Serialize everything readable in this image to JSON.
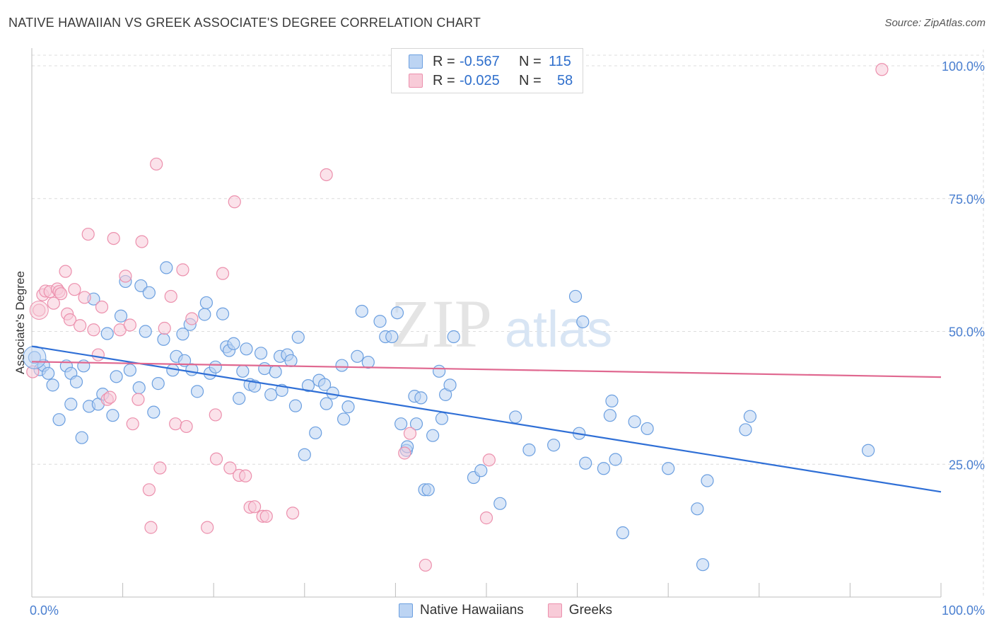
{
  "header": {
    "title": "NATIVE HAWAIIAN VS GREEK ASSOCIATE'S DEGREE CORRELATION CHART",
    "source": "Source: ZipAtlas.com"
  },
  "watermark": {
    "zip": "ZIP",
    "atlas": "atlas"
  },
  "legend": {
    "rows": [
      {
        "r_label": "R =",
        "r_value": "-0.567",
        "n_label": "N =",
        "n_value": "115",
        "color": "#a8c8f0"
      },
      {
        "r_label": "R =",
        "r_value": "-0.025",
        "n_label": "N =",
        "n_value": "58",
        "color": "#f5b8cb"
      }
    ]
  },
  "bottom_legend": {
    "series0": "Native Hawaiians",
    "series1": "Greeks"
  },
  "chart_data": {
    "type": "scatter",
    "title": "NATIVE HAWAIIAN VS GREEK ASSOCIATE'S DEGREE CORRELATION CHART",
    "xlabel": "",
    "ylabel": "Associate's Degree",
    "xlim": [
      0,
      100
    ],
    "ylim": [
      0,
      102
    ],
    "x_tick_labels": [
      "0.0%",
      "100.0%"
    ],
    "y_ticks": [
      25,
      50,
      75,
      100
    ],
    "y_tick_labels": [
      "25.0%",
      "50.0%",
      "75.0%",
      "100.0%"
    ],
    "grid": true,
    "legend_position": "top-center",
    "series": [
      {
        "name": "Native Hawaiians",
        "color": "#6b9fe0",
        "fill": "#bcd4f3",
        "line_color": "#2f6fd6",
        "trend": {
          "x": [
            0,
            100
          ],
          "y": [
            47.2,
            19.8
          ]
        },
        "points": [
          [
            0.3,
            45.1
          ],
          [
            0.9,
            42.8
          ],
          [
            1.3,
            43.6
          ],
          [
            1.8,
            42.1
          ],
          [
            2.3,
            39.9
          ],
          [
            3.0,
            33.4
          ],
          [
            3.8,
            43.5
          ],
          [
            4.3,
            42.1
          ],
          [
            4.3,
            36.3
          ],
          [
            4.9,
            40.5
          ],
          [
            5.5,
            30.0
          ],
          [
            5.7,
            43.5
          ],
          [
            6.3,
            35.9
          ],
          [
            6.8,
            56.1
          ],
          [
            7.3,
            36.3
          ],
          [
            7.8,
            38.2
          ],
          [
            8.3,
            49.6
          ],
          [
            8.9,
            34.2
          ],
          [
            9.3,
            41.5
          ],
          [
            9.8,
            52.9
          ],
          [
            10.3,
            59.4
          ],
          [
            10.8,
            42.7
          ],
          [
            11.8,
            39.4
          ],
          [
            12.0,
            58.6
          ],
          [
            12.5,
            50.0
          ],
          [
            12.9,
            57.3
          ],
          [
            13.4,
            34.8
          ],
          [
            13.9,
            40.2
          ],
          [
            14.5,
            48.5
          ],
          [
            14.8,
            62.0
          ],
          [
            15.5,
            42.7
          ],
          [
            15.9,
            45.3
          ],
          [
            16.6,
            49.5
          ],
          [
            16.8,
            44.5
          ],
          [
            17.4,
            51.3
          ],
          [
            17.6,
            42.8
          ],
          [
            18.2,
            38.7
          ],
          [
            19.0,
            53.2
          ],
          [
            19.2,
            55.4
          ],
          [
            19.6,
            42.1
          ],
          [
            20.2,
            43.3
          ],
          [
            21.0,
            53.3
          ],
          [
            21.4,
            47.1
          ],
          [
            21.7,
            46.4
          ],
          [
            22.2,
            47.7
          ],
          [
            22.8,
            37.4
          ],
          [
            23.2,
            42.5
          ],
          [
            23.6,
            46.7
          ],
          [
            24.0,
            40.0
          ],
          [
            24.5,
            39.7
          ],
          [
            25.2,
            45.9
          ],
          [
            25.6,
            43.0
          ],
          [
            26.3,
            38.1
          ],
          [
            26.8,
            42.4
          ],
          [
            27.3,
            45.3
          ],
          [
            27.5,
            38.9
          ],
          [
            28.1,
            45.6
          ],
          [
            28.5,
            44.5
          ],
          [
            29.0,
            36.0
          ],
          [
            29.3,
            48.9
          ],
          [
            30.0,
            26.8
          ],
          [
            30.4,
            39.8
          ],
          [
            31.2,
            30.9
          ],
          [
            31.6,
            40.8
          ],
          [
            32.2,
            40.0
          ],
          [
            32.4,
            36.4
          ],
          [
            33.1,
            38.4
          ],
          [
            34.1,
            43.6
          ],
          [
            34.3,
            33.5
          ],
          [
            34.8,
            35.8
          ],
          [
            35.8,
            45.3
          ],
          [
            36.3,
            53.8
          ],
          [
            37.0,
            44.2
          ],
          [
            38.3,
            51.9
          ],
          [
            38.9,
            49.0
          ],
          [
            39.6,
            49.0
          ],
          [
            40.2,
            53.5
          ],
          [
            40.6,
            32.6
          ],
          [
            41.2,
            27.6
          ],
          [
            41.3,
            28.3
          ],
          [
            42.1,
            37.8
          ],
          [
            42.3,
            32.6
          ],
          [
            42.8,
            37.5
          ],
          [
            43.2,
            20.2
          ],
          [
            43.6,
            20.2
          ],
          [
            44.1,
            30.4
          ],
          [
            44.8,
            42.5
          ],
          [
            45.1,
            33.6
          ],
          [
            45.5,
            38.1
          ],
          [
            46.0,
            39.9
          ],
          [
            46.4,
            49.0
          ],
          [
            48.6,
            22.5
          ],
          [
            49.4,
            23.8
          ],
          [
            51.5,
            17.6
          ],
          [
            53.2,
            33.9
          ],
          [
            54.7,
            27.7
          ],
          [
            57.4,
            28.6
          ],
          [
            59.8,
            56.6
          ],
          [
            60.2,
            30.8
          ],
          [
            60.6,
            51.8
          ],
          [
            60.9,
            25.2
          ],
          [
            62.9,
            24.2
          ],
          [
            63.6,
            34.2
          ],
          [
            63.8,
            36.9
          ],
          [
            64.2,
            25.9
          ],
          [
            65.0,
            12.1
          ],
          [
            66.3,
            33.0
          ],
          [
            67.7,
            31.7
          ],
          [
            70.0,
            24.2
          ],
          [
            73.2,
            16.6
          ],
          [
            73.8,
            6.1
          ],
          [
            74.3,
            21.9
          ],
          [
            78.5,
            31.5
          ],
          [
            79.0,
            34.0
          ],
          [
            92.0,
            27.6
          ]
        ]
      },
      {
        "name": "Greeks",
        "color": "#ec90ad",
        "fill": "#f8cbd8",
        "line_color": "#e06890",
        "trend": {
          "x": [
            0,
            100
          ],
          "y": [
            44.3,
            41.4
          ]
        },
        "points": [
          [
            0.1,
            42.4
          ],
          [
            0.8,
            54.0
          ],
          [
            1.2,
            56.9
          ],
          [
            1.5,
            57.6
          ],
          [
            2.0,
            57.5
          ],
          [
            2.4,
            55.3
          ],
          [
            2.8,
            58.0
          ],
          [
            3.0,
            57.5
          ],
          [
            3.2,
            57.1
          ],
          [
            3.7,
            61.3
          ],
          [
            3.9,
            53.3
          ],
          [
            4.2,
            52.2
          ],
          [
            4.7,
            57.9
          ],
          [
            5.3,
            51.1
          ],
          [
            5.8,
            56.4
          ],
          [
            6.2,
            68.3
          ],
          [
            6.8,
            50.3
          ],
          [
            7.3,
            45.6
          ],
          [
            7.7,
            54.6
          ],
          [
            8.3,
            37.2
          ],
          [
            8.6,
            37.6
          ],
          [
            9.0,
            67.5
          ],
          [
            9.7,
            50.3
          ],
          [
            10.3,
            60.4
          ],
          [
            10.8,
            51.2
          ],
          [
            11.1,
            32.6
          ],
          [
            11.7,
            37.2
          ],
          [
            12.1,
            66.9
          ],
          [
            12.9,
            20.2
          ],
          [
            13.1,
            13.1
          ],
          [
            13.7,
            81.5
          ],
          [
            14.1,
            24.3
          ],
          [
            14.6,
            50.6
          ],
          [
            15.3,
            56.6
          ],
          [
            15.8,
            32.6
          ],
          [
            16.6,
            61.6
          ],
          [
            17.0,
            32.1
          ],
          [
            17.6,
            52.4
          ],
          [
            19.3,
            13.1
          ],
          [
            20.2,
            34.3
          ],
          [
            20.3,
            26.0
          ],
          [
            21.0,
            60.9
          ],
          [
            21.8,
            24.3
          ],
          [
            22.3,
            74.4
          ],
          [
            22.8,
            22.9
          ],
          [
            23.5,
            22.8
          ],
          [
            24.0,
            16.9
          ],
          [
            24.5,
            17.0
          ],
          [
            25.4,
            15.2
          ],
          [
            25.8,
            15.2
          ],
          [
            28.7,
            15.8
          ],
          [
            32.4,
            79.5
          ],
          [
            41.0,
            27.1
          ],
          [
            41.6,
            30.8
          ],
          [
            43.3,
            6.0
          ],
          [
            50.0,
            14.9
          ],
          [
            50.3,
            25.8
          ],
          [
            93.5,
            99.3
          ]
        ]
      }
    ]
  }
}
